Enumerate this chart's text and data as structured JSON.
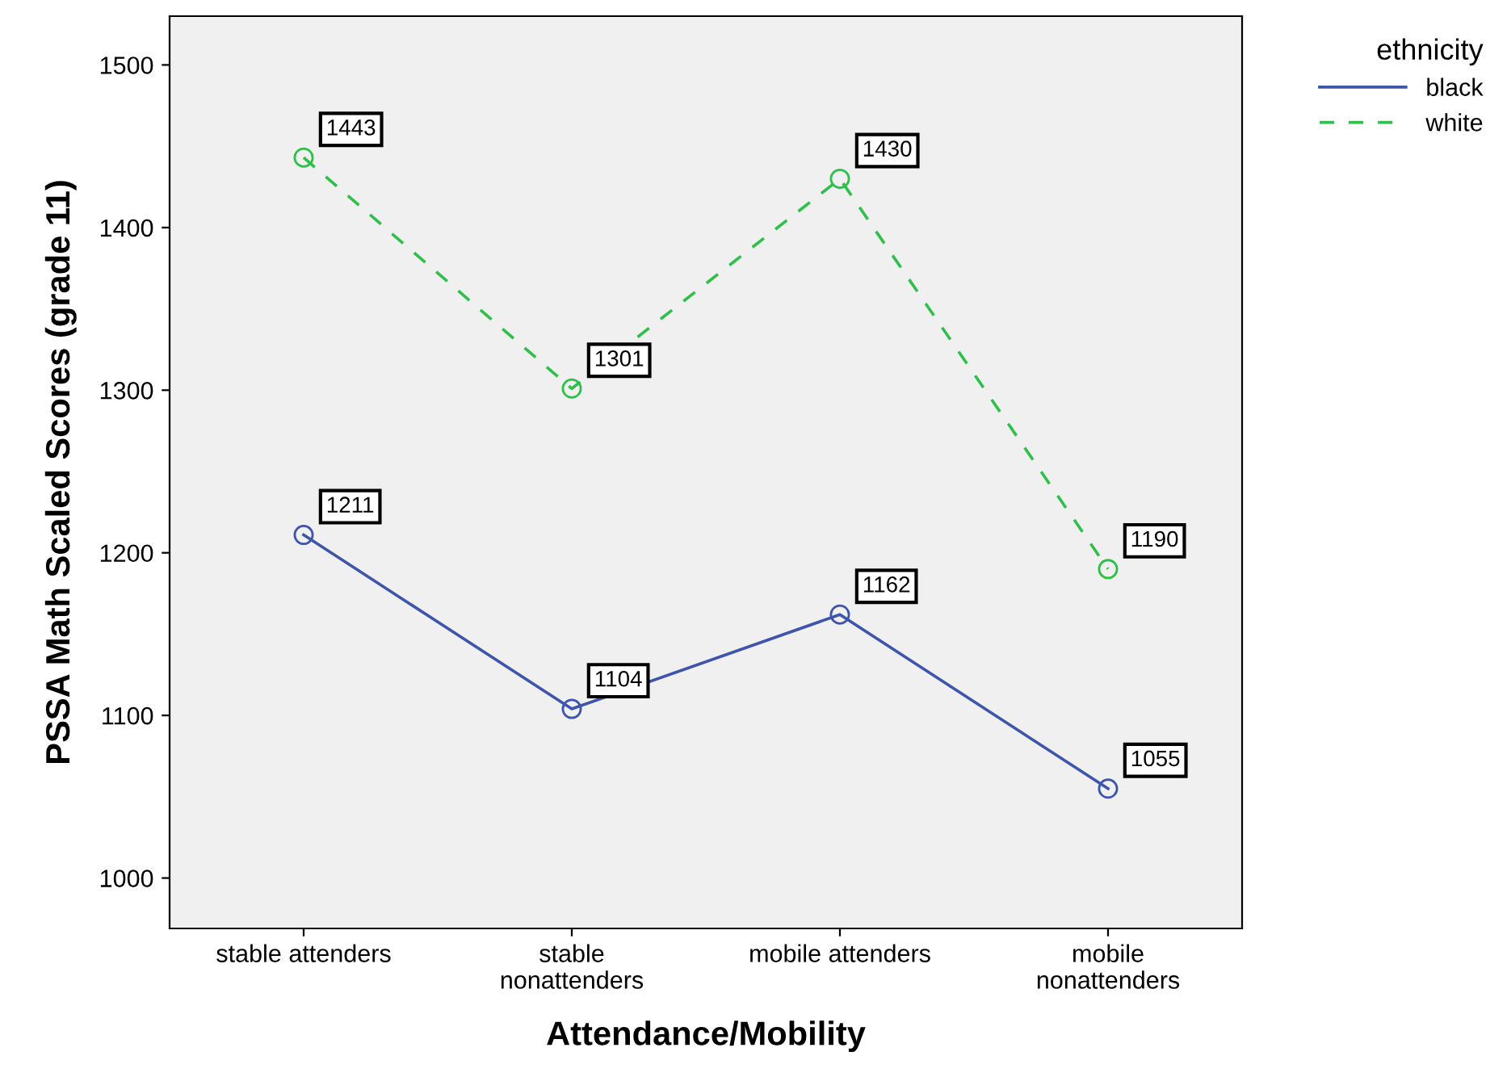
{
  "chart_data": {
    "type": "line",
    "xlabel": "Attendance/Mobility",
    "ylabel": "PSSA Math Scaled Scores (grade 11)",
    "legend_title": "ethnicity",
    "categories": [
      "stable attenders",
      "stable\nnonattenders",
      "mobile attenders",
      "mobile\nnonattenders"
    ],
    "series": [
      {
        "name": "black",
        "color": "#3e55ab",
        "values": [
          1211,
          1104,
          1162,
          1055
        ],
        "line_style": "solid"
      },
      {
        "name": "white",
        "color": "#2fbf4a",
        "values": [
          1443,
          1301,
          1430,
          1190
        ],
        "line_style": "dashed"
      }
    ],
    "ylim": [
      969,
      1530
    ],
    "yticks": [
      1000,
      1100,
      1200,
      1300,
      1400,
      1500
    ],
    "marker": "circle",
    "data_labels": true,
    "legend": "top right",
    "grid": false
  }
}
